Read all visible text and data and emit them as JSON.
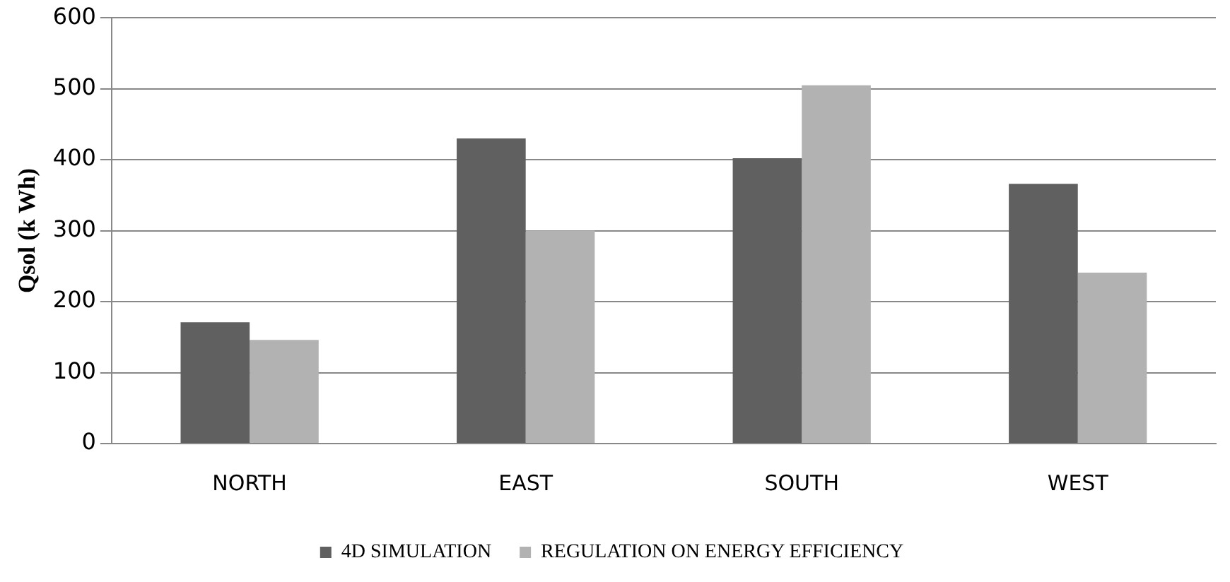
{
  "chart_data": {
    "type": "bar",
    "ylabel": "Qsol (k Wh)",
    "categories": [
      "NORTH",
      "EAST",
      "SOUTH",
      "WEST"
    ],
    "series": [
      {
        "name": "4D SIMULATION",
        "color": "#606060",
        "values": [
          171,
          430,
          402,
          366
        ]
      },
      {
        "name": "REGULATION ON ENERGY EFFICIENCY",
        "color": "#b2b2b2",
        "values": [
          146,
          300,
          505,
          241
        ]
      }
    ],
    "ylim": [
      0,
      600
    ],
    "yticks": [
      0,
      100,
      200,
      300,
      400,
      500,
      600
    ],
    "grid": "y",
    "legend": "bottom"
  }
}
